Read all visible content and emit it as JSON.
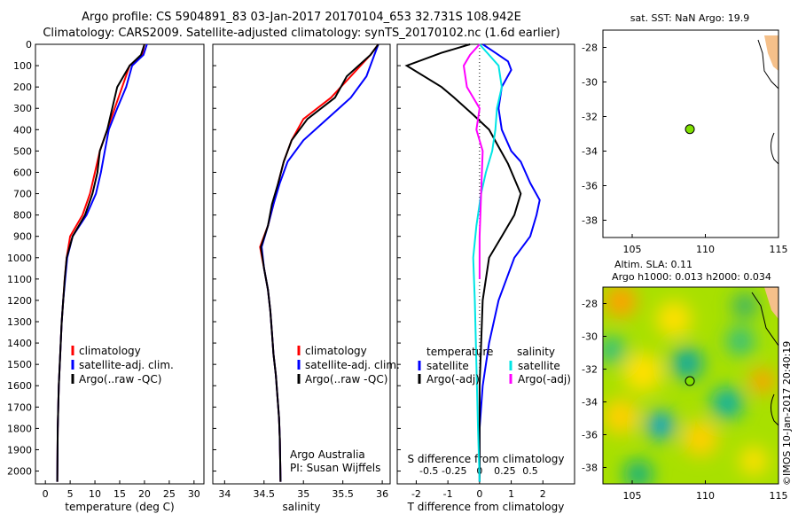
{
  "header": {
    "title1": "Argo profile: CS 5904891_83 03-Jan-2017 20170104_653 32.731S 108.942E",
    "title2": "Climatology: CARS2009. Satellite-adjusted climatology: synTS_20170102.nc (1.6d earlier)"
  },
  "colors": {
    "climatology": "#ff0000",
    "satellite": "#0000ff",
    "argo": "#000000",
    "sat_salinity": "#00e5e5",
    "argo_salinity": "#ff00ff",
    "float": "#7fe000",
    "land": "#f5c08a"
  },
  "depth_ticks": [
    0,
    100,
    200,
    300,
    400,
    500,
    600,
    700,
    800,
    900,
    1000,
    1100,
    1200,
    1300,
    1400,
    1500,
    1600,
    1700,
    1800,
    1900,
    2000
  ],
  "chart_data": [
    {
      "type": "line",
      "xlabel": "temperature (deg C)",
      "xlim": [
        -2,
        32
      ],
      "ylim": [
        2060,
        0
      ],
      "xticks": [
        0,
        5,
        10,
        15,
        20,
        25,
        30
      ],
      "legend": [
        "climatology",
        "satellite-adj. clim.",
        "Argo(..raw -QC)"
      ],
      "series": [
        {
          "name": "climatology",
          "x": [
            20,
            19.5,
            17,
            15.5,
            14,
            12.5,
            11,
            10,
            9,
            7.5,
            5,
            4.3,
            3.9,
            3.6,
            3.3,
            3.1,
            2.9,
            2.7,
            2.6,
            2.5,
            2.4
          ],
          "y": [
            0,
            50,
            100,
            200,
            300,
            400,
            500,
            600,
            700,
            800,
            900,
            1000,
            1100,
            1200,
            1300,
            1400,
            1500,
            1600,
            1700,
            1800,
            2050
          ]
        },
        {
          "name": "satellite-adj. clim.",
          "x": [
            20.5,
            19.8,
            17.5,
            16.3,
            14.5,
            12.8,
            12,
            11.2,
            10.2,
            8.3,
            5.5,
            4.4,
            4,
            3.6,
            3.3,
            3.1,
            2.9,
            2.7,
            2.6,
            2.5,
            2.4
          ],
          "y": [
            0,
            50,
            100,
            200,
            300,
            400,
            500,
            600,
            700,
            800,
            900,
            1000,
            1100,
            1200,
            1300,
            1400,
            1500,
            1600,
            1700,
            1800,
            2050
          ]
        },
        {
          "name": "Argo(..raw -QC)",
          "x": [
            20,
            19.3,
            17,
            14.5,
            13.5,
            12.5,
            11,
            10.5,
            9.5,
            8,
            5.5,
            4.3,
            3.9,
            3.6,
            3.3,
            3.1,
            2.9,
            2.7,
            2.6,
            2.5,
            2.4
          ],
          "y": [
            0,
            50,
            100,
            200,
            300,
            400,
            500,
            600,
            700,
            800,
            900,
            1000,
            1100,
            1200,
            1300,
            1400,
            1500,
            1600,
            1700,
            1800,
            2050
          ]
        }
      ]
    },
    {
      "type": "line",
      "xlabel": "salinity",
      "xlim": [
        33.85,
        36.1
      ],
      "ylim": [
        2060,
        0
      ],
      "xticks": [
        34,
        34.5,
        35,
        35.5,
        36
      ],
      "legend": [
        "climatology",
        "satellite-adj. clim.",
        "Argo(..raw -QC)"
      ],
      "annotations": [
        "Argo Australia",
        "PI: Susan Wijffels"
      ],
      "series": [
        {
          "name": "climatology",
          "x": [
            35.95,
            35.85,
            35.6,
            35.35,
            35.0,
            34.85,
            34.75,
            34.68,
            34.62,
            34.55,
            34.45,
            34.5,
            34.55,
            34.58,
            34.6,
            34.62,
            34.65,
            34.67,
            34.69,
            34.7,
            34.71
          ],
          "y": [
            0,
            50,
            150,
            250,
            350,
            450,
            550,
            650,
            750,
            850,
            950,
            1050,
            1150,
            1250,
            1350,
            1450,
            1550,
            1650,
            1750,
            1850,
            2050
          ]
        },
        {
          "name": "satellite-adj. clim.",
          "x": [
            35.95,
            35.9,
            35.8,
            35.6,
            35.3,
            35.0,
            34.8,
            34.7,
            34.62,
            34.55,
            34.47,
            34.5,
            34.55,
            34.58,
            34.6,
            34.62,
            34.65,
            34.67,
            34.69,
            34.7,
            34.71
          ],
          "y": [
            0,
            50,
            150,
            250,
            350,
            450,
            550,
            650,
            750,
            850,
            950,
            1050,
            1150,
            1250,
            1350,
            1450,
            1550,
            1650,
            1750,
            1850,
            2050
          ]
        },
        {
          "name": "Argo(..raw -QC)",
          "x": [
            35.95,
            35.85,
            35.55,
            35.4,
            35.05,
            34.85,
            34.75,
            34.68,
            34.6,
            34.55,
            34.46,
            34.5,
            34.55,
            34.58,
            34.6,
            34.62,
            34.65,
            34.67,
            34.69,
            34.7,
            34.71
          ],
          "y": [
            0,
            50,
            150,
            250,
            350,
            450,
            550,
            650,
            750,
            850,
            950,
            1050,
            1150,
            1250,
            1350,
            1450,
            1550,
            1650,
            1750,
            1850,
            2050
          ]
        }
      ]
    },
    {
      "type": "line",
      "xlabel": "T difference from climatology",
      "top_label": "S difference from climatology",
      "xlim": [
        -2.6,
        3.0
      ],
      "ylim": [
        2060,
        0
      ],
      "xticks": [
        -2,
        -1,
        0,
        1,
        2
      ],
      "top_ticks": [
        "-0.5",
        "-0.25",
        "0",
        "0.25",
        "0.5"
      ],
      "legend_headers": [
        "temperature",
        "salinity"
      ],
      "legend": [
        "satellite",
        "Argo(-adj)",
        "satellite",
        "Argo(-adj)"
      ],
      "series": [
        {
          "name": "satellite",
          "x": [
            0.1,
            0.5,
            0.9,
            1.0,
            0.7,
            0.6,
            0.7,
            1.0,
            1.3,
            1.6,
            1.9,
            1.8,
            1.6,
            1.1,
            0.6,
            0.3,
            0.1,
            0.0,
            0.0
          ],
          "y": [
            0,
            40,
            80,
            120,
            200,
            300,
            400,
            500,
            550,
            650,
            730,
            800,
            900,
            1000,
            1200,
            1400,
            1600,
            1800,
            2050
          ]
        },
        {
          "name": "Argo(-adj)",
          "x": [
            -0.3,
            -1.2,
            -2.3,
            -1.2,
            -0.8,
            -0.2,
            0.3,
            0.6,
            0.9,
            1.3,
            1.1,
            0.7,
            0.3,
            0.1,
            0.0,
            0.0
          ],
          "y": [
            0,
            40,
            100,
            200,
            250,
            330,
            400,
            480,
            560,
            700,
            800,
            900,
            1000,
            1200,
            1600,
            2050
          ]
        },
        {
          "name": "satellite",
          "x": [
            0,
            0.3,
            0.6,
            0.7,
            0.55,
            0.5,
            0.4,
            0.2,
            0.05,
            -0.1,
            -0.2,
            -0.15,
            -0.1,
            -0.05,
            0
          ],
          "y": [
            0,
            50,
            100,
            200,
            300,
            400,
            500,
            600,
            700,
            850,
            1000,
            1200,
            1500,
            1800,
            2050
          ]
        },
        {
          "name": "Argo(-adj)",
          "x": [
            0,
            -0.3,
            -0.5,
            -0.4,
            0,
            -0.1,
            0.1,
            0.05,
            0,
            0
          ],
          "y": [
            0,
            50,
            100,
            200,
            300,
            400,
            500,
            700,
            900,
            1100
          ]
        }
      ]
    },
    {
      "type": "scatter",
      "title": "sat. SST: NaN Argo: 19.9",
      "xlim": [
        103,
        115
      ],
      "ylim": [
        -39,
        -27
      ],
      "xticks": [
        105,
        110,
        115
      ],
      "yticks": [
        -28,
        -30,
        -32,
        -34,
        -36,
        -38
      ],
      "points": [
        {
          "x": 108.942,
          "y": -32.731
        }
      ]
    },
    {
      "type": "heatmap",
      "title": "Altim. SLA: 0.11",
      "subtitle": "Argo h1000: 0.013 h2000: 0.034",
      "xlim": [
        103,
        115
      ],
      "ylim": [
        -39,
        -27
      ],
      "xticks": [
        105,
        110,
        115
      ],
      "yticks": [
        -28,
        -30,
        -32,
        -34,
        -36,
        -38
      ],
      "points": [
        {
          "x": 108.942,
          "y": -32.731
        }
      ]
    }
  ],
  "watermark": "©IMOS 10-Jan-2017 20:40:19"
}
